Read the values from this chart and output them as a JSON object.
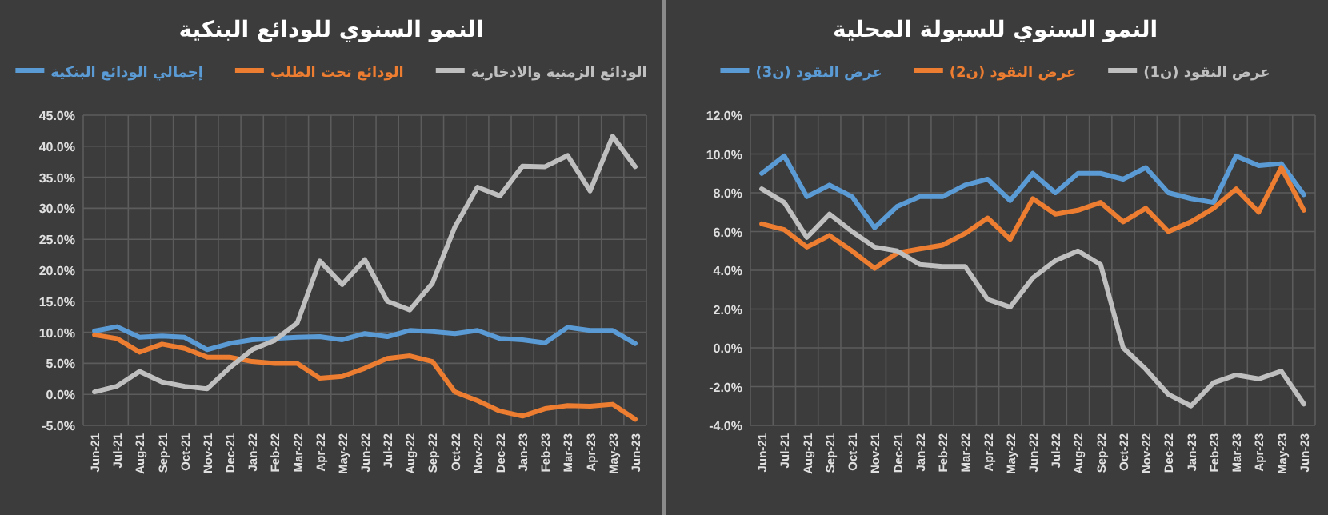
{
  "chart_data": [
    {
      "type": "line",
      "title": "النمو السنوي للودائع البنكية",
      "legend": "top",
      "grid": true,
      "categories": [
        "Jun-21",
        "Jul-21",
        "Aug-21",
        "Sep-21",
        "Oct-21",
        "Nov-21",
        "Dec-21",
        "Jan-22",
        "Feb-22",
        "Mar-22",
        "Apr-22",
        "May-22",
        "Jun-22",
        "Jul-22",
        "Aug-22",
        "Sep-22",
        "Oct-22",
        "Nov-22",
        "Dec-22",
        "Jan-23",
        "Feb-23",
        "Mar-23",
        "Apr-23",
        "May-23",
        "Jun-23"
      ],
      "ylim": [
        -5,
        45
      ],
      "yticks": [
        {
          "value": -5,
          "label": "-5.0%"
        },
        {
          "value": 0,
          "label": "0.0%"
        },
        {
          "value": 5,
          "label": "5.0%"
        },
        {
          "value": 10,
          "label": "10.0%"
        },
        {
          "value": 15,
          "label": "15.0%"
        },
        {
          "value": 20,
          "label": "20.0%"
        },
        {
          "value": 25,
          "label": "25.0%"
        },
        {
          "value": 30,
          "label": "30.0%"
        },
        {
          "value": 35,
          "label": "35.0%"
        },
        {
          "value": 40,
          "label": "40.0%"
        },
        {
          "value": 45,
          "label": "45.0%"
        }
      ],
      "series": [
        {
          "name": "إجمالي الودائع البنكية",
          "color": "#5b9bd5",
          "values": [
            10.2,
            10.9,
            9.2,
            9.4,
            9.2,
            7.2,
            8.2,
            8.8,
            9.0,
            9.2,
            9.3,
            8.8,
            9.8,
            9.3,
            10.3,
            10.1,
            9.8,
            10.3,
            9.0,
            8.8,
            8.3,
            10.8,
            10.3,
            10.3,
            8.2
          ]
        },
        {
          "name": "الودائع تحت الطلب",
          "color": "#ed7d31",
          "values": [
            9.6,
            9.0,
            6.8,
            8.1,
            7.4,
            6.0,
            6.0,
            5.3,
            5.0,
            5.0,
            2.6,
            2.9,
            4.2,
            5.8,
            6.2,
            5.3,
            0.4,
            -1.0,
            -2.7,
            -3.5,
            -2.3,
            -1.8,
            -1.9,
            -1.6,
            -4.0
          ]
        },
        {
          "name": "الودائع الزمنية والادخارية",
          "color": "#bfbfbf",
          "values": [
            0.4,
            1.3,
            3.7,
            2.0,
            1.3,
            0.9,
            4.3,
            7.2,
            8.7,
            11.5,
            21.5,
            17.7,
            21.7,
            15.0,
            13.6,
            17.9,
            27.0,
            33.4,
            32.0,
            36.8,
            36.7,
            38.5,
            32.8,
            41.6,
            36.7
          ]
        }
      ]
    },
    {
      "type": "line",
      "title": "النمو السنوي للسيولة المحلية",
      "legend": "top",
      "grid": true,
      "categories": [
        "Jun-21",
        "Jul-21",
        "Aug-21",
        "Sep-21",
        "Oct-21",
        "Nov-21",
        "Dec-21",
        "Jan-22",
        "Feb-22",
        "Mar-22",
        "Apr-22",
        "May-22",
        "Jun-22",
        "Jul-22",
        "Aug-22",
        "Sep-22",
        "Oct-22",
        "Nov-22",
        "Dec-22",
        "Jan-23",
        "Feb-23",
        "Mar-23",
        "Apr-23",
        "May-23",
        "Jun-23"
      ],
      "ylim": [
        -4,
        12
      ],
      "yticks": [
        {
          "value": -4,
          "label": "-4.0%"
        },
        {
          "value": -2,
          "label": "-2.0%"
        },
        {
          "value": 0,
          "label": "0.0%"
        },
        {
          "value": 2,
          "label": "2.0%"
        },
        {
          "value": 4,
          "label": "4.0%"
        },
        {
          "value": 6,
          "label": "6.0%"
        },
        {
          "value": 8,
          "label": "8.0%"
        },
        {
          "value": 10,
          "label": "10.0%"
        },
        {
          "value": 12,
          "label": "12.0%"
        }
      ],
      "series": [
        {
          "name": "عرض النقود (ن3)",
          "color": "#5b9bd5",
          "values": [
            9.0,
            9.9,
            7.8,
            8.4,
            7.8,
            6.2,
            7.3,
            7.8,
            7.8,
            8.4,
            8.7,
            7.6,
            9.0,
            8.0,
            9.0,
            9.0,
            8.7,
            9.3,
            8.0,
            7.7,
            7.5,
            9.9,
            9.4,
            9.5,
            7.9
          ]
        },
        {
          "name": "عرض النقود (ن2)",
          "color": "#ed7d31",
          "values": [
            6.4,
            6.1,
            5.2,
            5.8,
            5.0,
            4.1,
            4.9,
            5.1,
            5.3,
            5.9,
            6.7,
            5.6,
            7.7,
            6.9,
            7.1,
            7.5,
            6.5,
            7.2,
            6.0,
            6.5,
            7.2,
            8.2,
            7.0,
            9.3,
            7.1
          ]
        },
        {
          "name": "عرض النقود (ن1)",
          "color": "#bfbfbf",
          "values": [
            8.2,
            7.5,
            5.7,
            6.9,
            6.0,
            5.2,
            5.0,
            4.3,
            4.2,
            4.2,
            2.5,
            2.1,
            3.6,
            4.5,
            5.0,
            4.3,
            0.0,
            -1.1,
            -2.4,
            -3.0,
            -1.8,
            -1.4,
            -1.6,
            -1.2,
            -2.9
          ]
        }
      ]
    }
  ]
}
